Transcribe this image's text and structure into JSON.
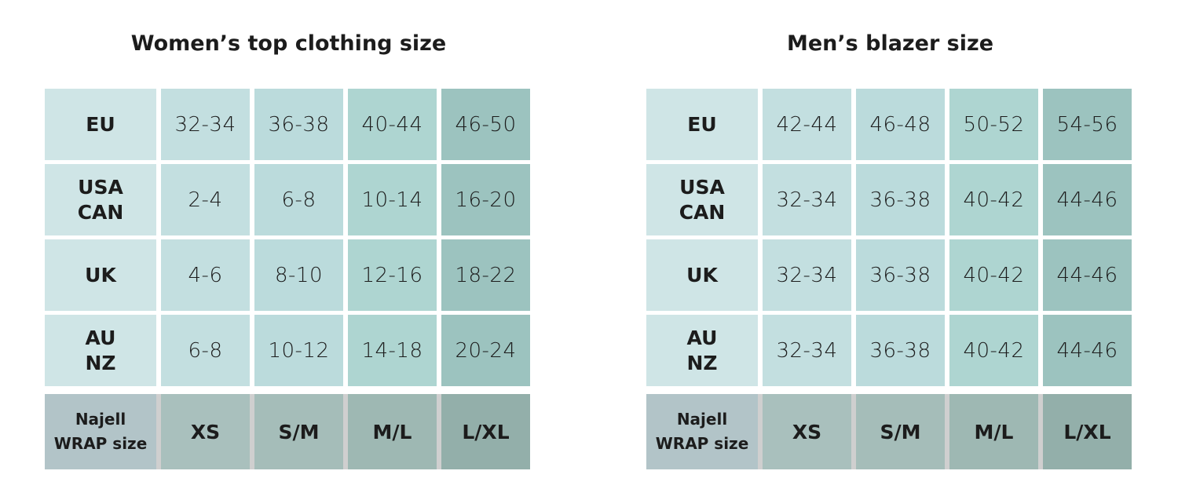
{
  "tables": [
    {
      "title": "Women’s top clothing size",
      "rows": [
        {
          "label": "EU",
          "values": [
            "32-34",
            "36-38",
            "40-44",
            "46-50"
          ]
        },
        {
          "label": "USA\nCAN",
          "values": [
            "2-4",
            "6-8",
            "10-14",
            "16-20"
          ]
        },
        {
          "label": "UK",
          "values": [
            "4-6",
            "8-10",
            "12-16",
            "18-22"
          ]
        },
        {
          "label": "AU\nNZ",
          "values": [
            "6-8",
            "10-12",
            "14-18",
            "20-24"
          ]
        }
      ],
      "footer": {
        "label": "Najell\nWRAP size",
        "values": [
          "XS",
          "S/M",
          "M/L",
          "L/XL"
        ]
      }
    },
    {
      "title": "Men’s blazer size",
      "rows": [
        {
          "label": "EU",
          "values": [
            "42-44",
            "46-48",
            "50-52",
            "54-56"
          ]
        },
        {
          "label": "USA\nCAN",
          "values": [
            "32-34",
            "36-38",
            "40-42",
            "44-46"
          ]
        },
        {
          "label": "UK",
          "values": [
            "32-34",
            "36-38",
            "40-42",
            "44-46"
          ]
        },
        {
          "label": "AU\nNZ",
          "values": [
            "32-34",
            "36-38",
            "40-42",
            "44-46"
          ]
        }
      ],
      "footer": {
        "label": "Najell\nWRAP size",
        "values": [
          "XS",
          "S/M",
          "M/L",
          "L/XL"
        ]
      }
    }
  ]
}
